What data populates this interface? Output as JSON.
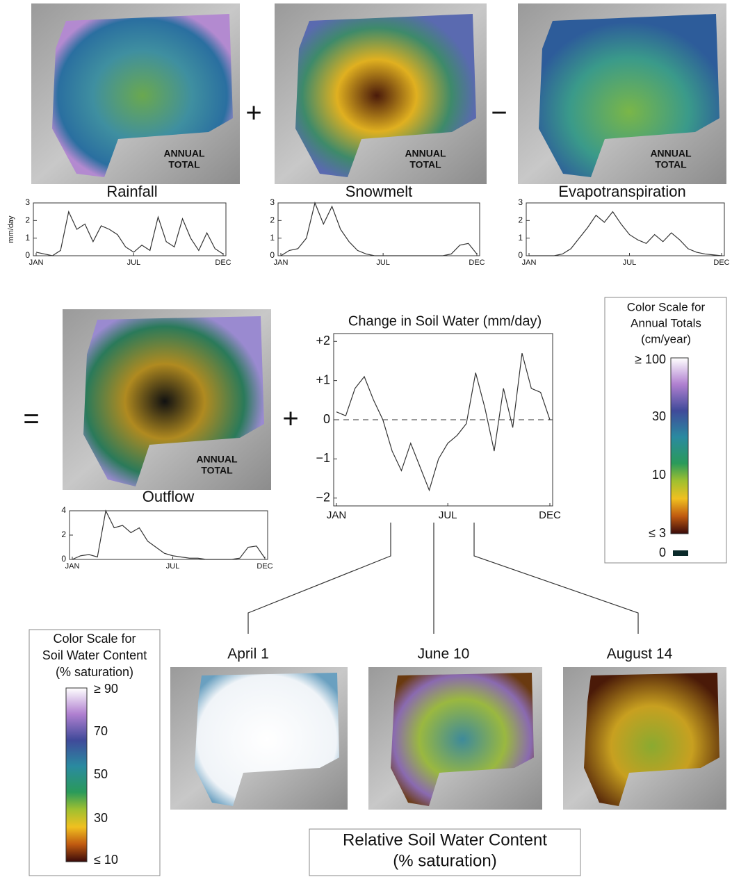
{
  "chart_data": [
    {
      "type": "line",
      "title": "Rainfall",
      "ylabel": "mm/day",
      "color": "#333",
      "categories": [
        "JAN",
        null,
        null,
        null,
        null,
        null,
        null,
        null,
        null,
        null,
        null,
        null,
        "JUL",
        null,
        null,
        null,
        null,
        null,
        null,
        null,
        null,
        null,
        null,
        "DEC"
      ],
      "values": [
        0.2,
        0.1,
        0,
        0.3,
        2.5,
        1.5,
        1.8,
        0.8,
        1.7,
        1.5,
        1.2,
        0.5,
        0.2,
        0.6,
        0.3,
        2.2,
        0.8,
        0.5,
        2.1,
        1.0,
        0.3,
        1.3,
        0.4,
        0.1
      ],
      "ylim": [
        0,
        3
      ],
      "yticks": [
        0,
        1,
        2,
        3
      ]
    },
    {
      "type": "line",
      "title": "Snowmelt",
      "color": "#333",
      "categories": [
        "JAN",
        null,
        null,
        null,
        null,
        null,
        null,
        null,
        null,
        null,
        null,
        null,
        "JUL",
        null,
        null,
        null,
        null,
        null,
        null,
        null,
        null,
        null,
        null,
        "DEC"
      ],
      "values": [
        0,
        0.3,
        0.4,
        1.0,
        3.0,
        1.8,
        2.8,
        1.5,
        0.8,
        0.3,
        0.1,
        0,
        0,
        0,
        0,
        0,
        0,
        0,
        0,
        0,
        0.1,
        0.6,
        0.7,
        0.1
      ],
      "ylim": [
        0,
        3
      ],
      "yticks": [
        0,
        1,
        2,
        3
      ]
    },
    {
      "type": "line",
      "title": "Evapotranspiration",
      "color": "#333",
      "categories": [
        "JAN",
        null,
        null,
        null,
        null,
        null,
        null,
        null,
        null,
        null,
        null,
        null,
        "JUL",
        null,
        null,
        null,
        null,
        null,
        null,
        null,
        null,
        null,
        null,
        "DEC"
      ],
      "values": [
        0,
        0,
        0,
        0,
        0.1,
        0.4,
        1.0,
        1.6,
        2.3,
        1.9,
        2.5,
        1.8,
        1.2,
        0.9,
        0.7,
        1.2,
        0.8,
        1.3,
        0.9,
        0.4,
        0.2,
        0.1,
        0.05,
        0
      ],
      "ylim": [
        0,
        3
      ],
      "yticks": [
        0,
        1,
        2,
        3
      ]
    },
    {
      "type": "line",
      "title": "Outflow",
      "color": "#333",
      "categories": [
        "JAN",
        null,
        null,
        null,
        null,
        null,
        null,
        null,
        null,
        null,
        null,
        null,
        "JUL",
        null,
        null,
        null,
        null,
        null,
        null,
        null,
        null,
        null,
        null,
        "DEC"
      ],
      "values": [
        0,
        0.3,
        0.4,
        0.2,
        4.0,
        2.6,
        2.8,
        2.2,
        2.6,
        1.5,
        1.0,
        0.5,
        0.3,
        0.2,
        0.1,
        0.1,
        0,
        0,
        0,
        0,
        0.1,
        1.0,
        1.1,
        0.1
      ],
      "ylim": [
        0,
        4
      ],
      "yticks": [
        0,
        2,
        4
      ]
    },
    {
      "type": "line",
      "title": "Change in Soil Water (mm/day)",
      "color": "#333",
      "zero_line": true,
      "categories": [
        "JAN",
        null,
        null,
        null,
        null,
        null,
        null,
        null,
        null,
        null,
        null,
        null,
        "JUL",
        null,
        null,
        null,
        null,
        null,
        null,
        null,
        null,
        null,
        null,
        "DEC"
      ],
      "values": [
        0.2,
        0.1,
        0.8,
        1.1,
        0.5,
        0,
        -0.8,
        -1.3,
        -0.6,
        -1.2,
        -1.8,
        -1.0,
        -0.6,
        -0.4,
        -0.1,
        1.2,
        0.3,
        -0.8,
        0.8,
        -0.2,
        1.7,
        0.8,
        0.7,
        0.0
      ],
      "ylim": [
        -2.2,
        2.2
      ],
      "yticks": [
        {
          "value": 2,
          "label": "+2"
        },
        {
          "value": 1,
          "label": "+1"
        },
        0,
        {
          "value": -1,
          "label": "−1"
        },
        {
          "value": -2,
          "label": "−2"
        }
      ]
    }
  ],
  "maps": [
    {
      "label": [
        "ANNUAL",
        "TOTAL"
      ]
    },
    {
      "label": [
        "ANNUAL",
        "TOTAL"
      ]
    },
    {
      "label": [
        "ANNUAL",
        "TOTAL"
      ]
    },
    {
      "label": [
        "ANNUAL",
        "TOTAL"
      ]
    }
  ],
  "operators": [
    "+",
    "−",
    "=",
    "+"
  ],
  "annual_scale": {
    "title": [
      "Color Scale for",
      "Annual Totals",
      "(cm/year)"
    ],
    "labels": [
      "≥ 100",
      "30",
      "10",
      "≤ 3",
      "0"
    ]
  },
  "soil_scale": {
    "title": [
      "Color Scale for",
      "Soil Water Content",
      "(% saturation)"
    ],
    "labels": [
      "≥ 90",
      "70",
      "50",
      "30",
      "≤ 10"
    ]
  },
  "soil_maps": [
    "April 1",
    "June 10",
    "August 14"
  ],
  "footer": [
    "Relative Soil Water Content",
    "(% saturation)"
  ]
}
